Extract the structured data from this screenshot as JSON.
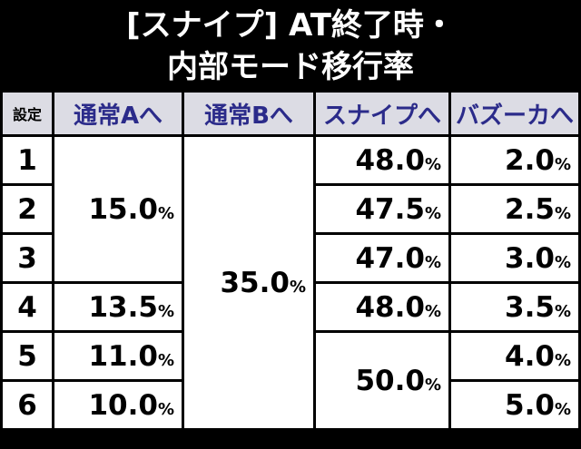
{
  "title": [
    "[スナイプ] AT終了時・",
    "内部モード移行率"
  ],
  "table": {
    "headers": [
      "設定",
      "通常Aへ",
      "通常Bへ",
      "スナイプへ",
      "バズーカへ"
    ],
    "rows": [
      [
        "1",
        "15.0%",
        "35.0%",
        "48.0%",
        "2.0%"
      ],
      [
        "2",
        "47.5%",
        "2.5%"
      ],
      [
        "3",
        "47.0%",
        "3.0%"
      ],
      [
        "4",
        "13.5%",
        "48.0%",
        "3.5%"
      ],
      [
        "5",
        "11.0%",
        "50.0%",
        "4.0%"
      ],
      [
        "6",
        "10.0%",
        "5.0%"
      ]
    ]
  }
}
